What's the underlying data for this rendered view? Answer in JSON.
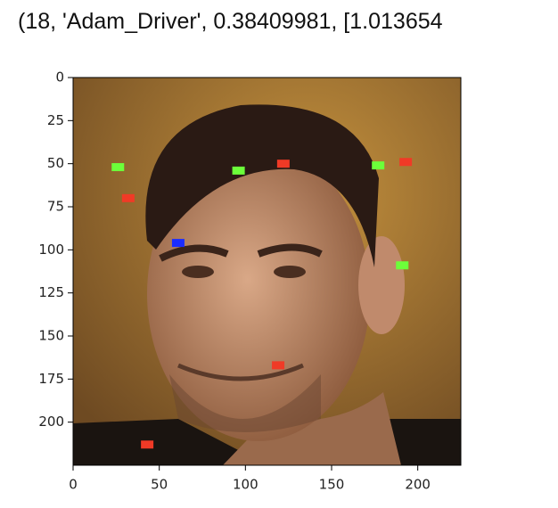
{
  "header": {
    "text": "(18, 'Adam_Driver', 0.38409981, [1.013654"
  },
  "chart_data": {
    "type": "scatter",
    "xlim": [
      0,
      225
    ],
    "ylim": [
      225,
      0
    ],
    "xticks": [
      0,
      50,
      100,
      150,
      200
    ],
    "yticks": [
      0,
      25,
      50,
      75,
      100,
      125,
      150,
      175,
      200
    ],
    "series": [
      {
        "color": "#6cff3a",
        "x": [
          26,
          96,
          177,
          191
        ],
        "values": [
          52,
          54,
          51,
          109
        ]
      },
      {
        "color": "#f03a26",
        "x": [
          122,
          193,
          32,
          119,
          43
        ],
        "values": [
          50,
          49,
          70,
          167,
          213
        ]
      },
      {
        "color": "#1a2cff",
        "x": [
          61
        ],
        "values": [
          96
        ]
      }
    ]
  }
}
